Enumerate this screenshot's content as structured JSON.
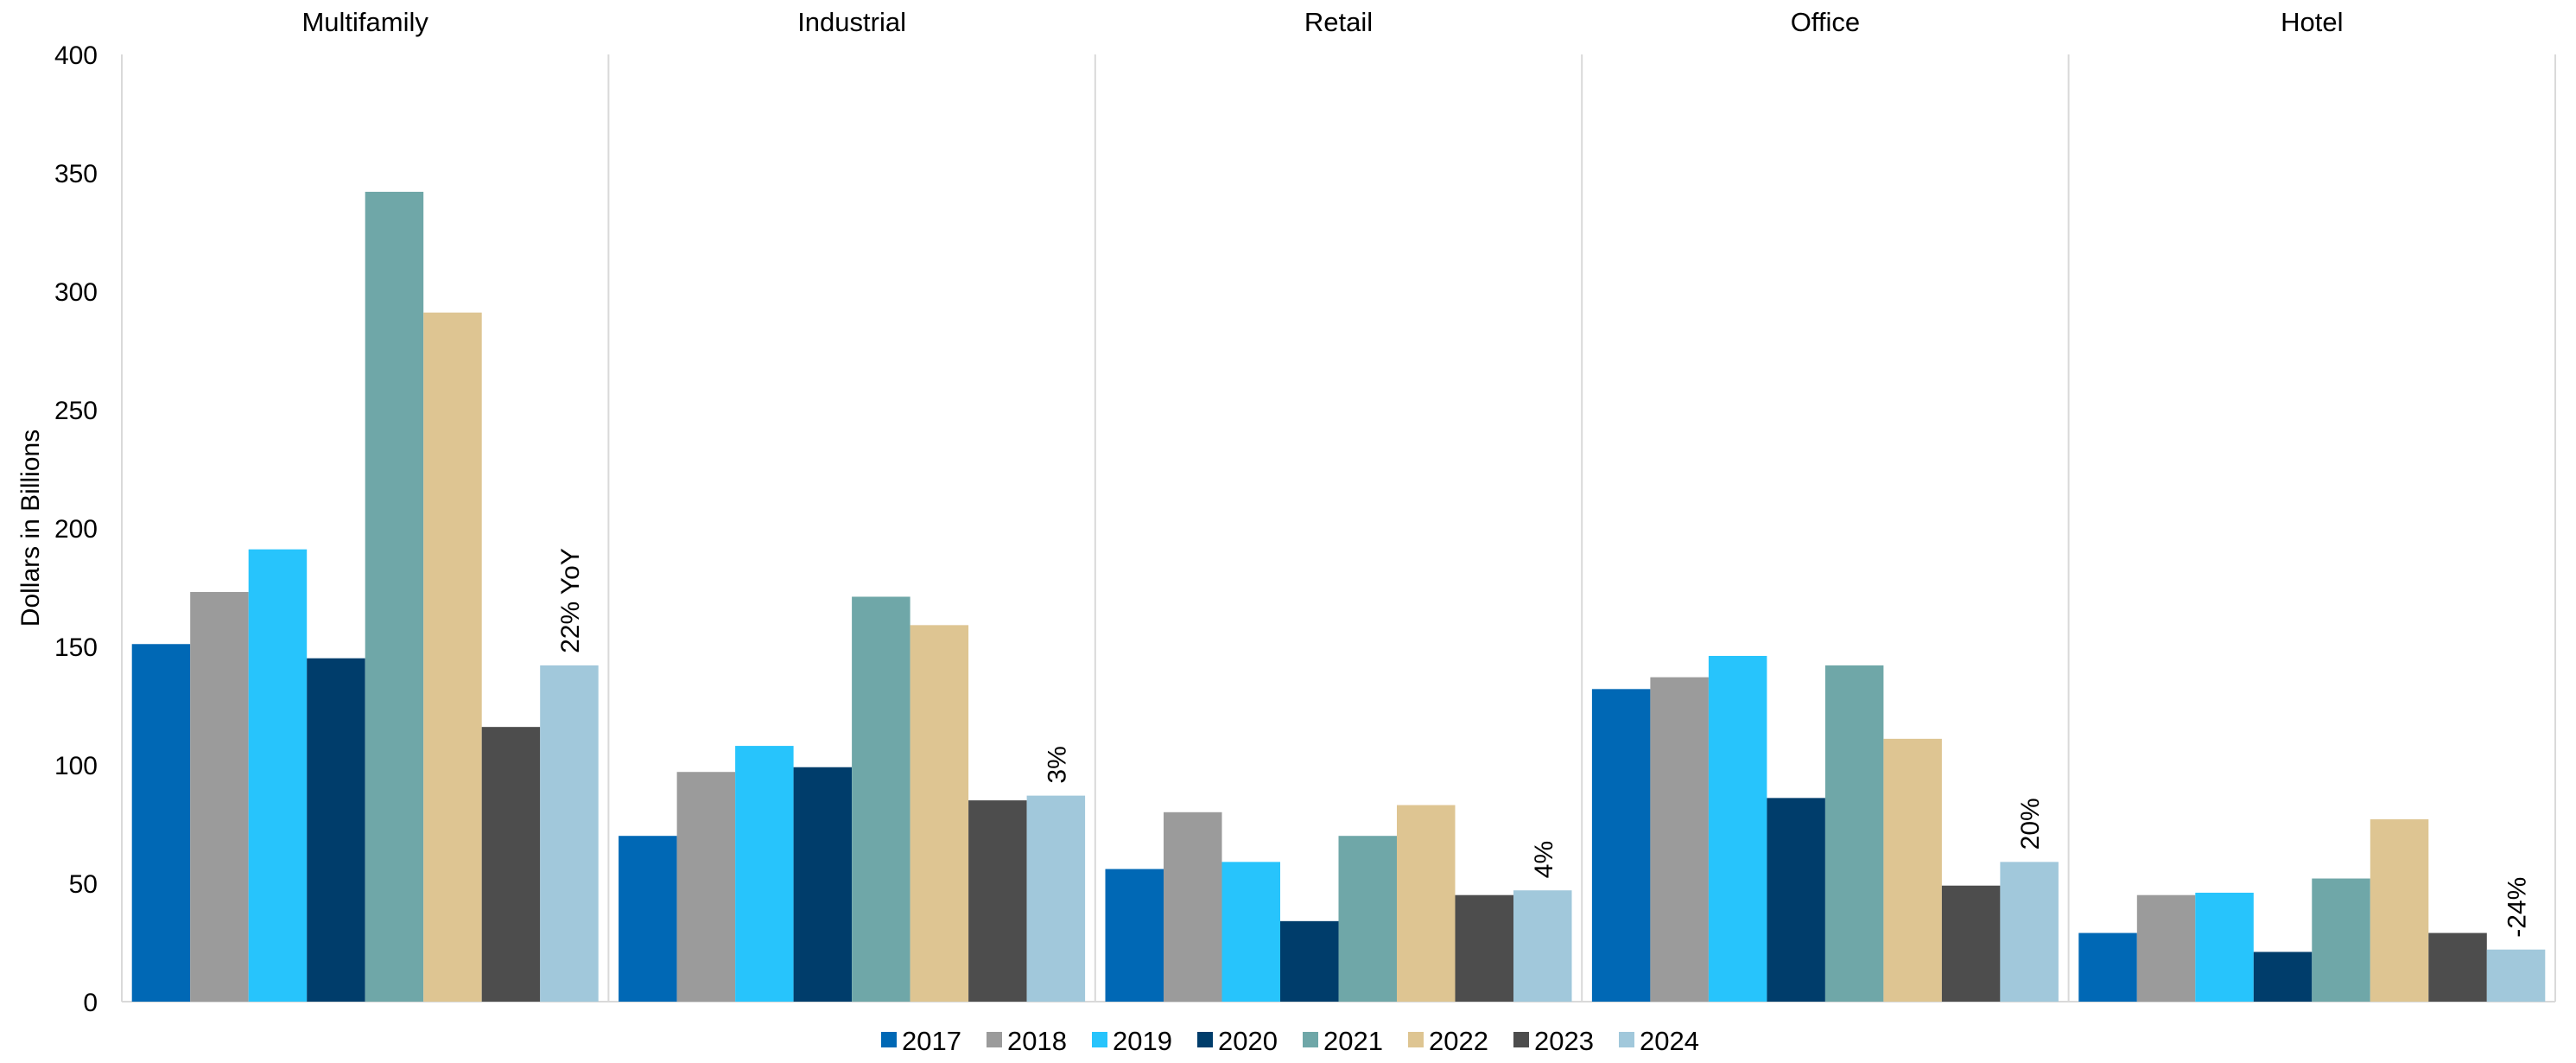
{
  "chart_data": {
    "type": "bar",
    "ylabel": "Dollars in Billions",
    "ylim": [
      0,
      400
    ],
    "yticks": [
      "0",
      "50",
      "100",
      "150",
      "200",
      "250",
      "300",
      "350",
      "400"
    ],
    "legend_position": "bottom",
    "grid": false,
    "series_names": [
      "2017",
      "2018",
      "2019",
      "2020",
      "2021",
      "2022",
      "2023",
      "2024"
    ],
    "colors": [
      "#0068b5",
      "#9b9b9b",
      "#27c4fc",
      "#003d6b",
      "#6fa7a8",
      "#dec592",
      "#4d4d4d",
      "#a1c8db"
    ],
    "panels": [
      {
        "title": "Multifamily",
        "values": [
          151,
          173,
          191,
          145,
          342,
          291,
          116,
          142
        ],
        "annotation": "22% YoY"
      },
      {
        "title": "Industrial",
        "values": [
          70,
          97,
          108,
          99,
          171,
          159,
          85,
          87
        ],
        "annotation": "3%"
      },
      {
        "title": "Retail",
        "values": [
          56,
          80,
          59,
          34,
          70,
          83,
          45,
          47
        ],
        "annotation": "4%"
      },
      {
        "title": "Office",
        "values": [
          132,
          137,
          146,
          86,
          142,
          111,
          49,
          59
        ],
        "annotation": "20%"
      },
      {
        "title": "Hotel",
        "values": [
          29,
          45,
          46,
          21,
          52,
          77,
          29,
          22
        ],
        "annotation": "-24%"
      }
    ]
  }
}
